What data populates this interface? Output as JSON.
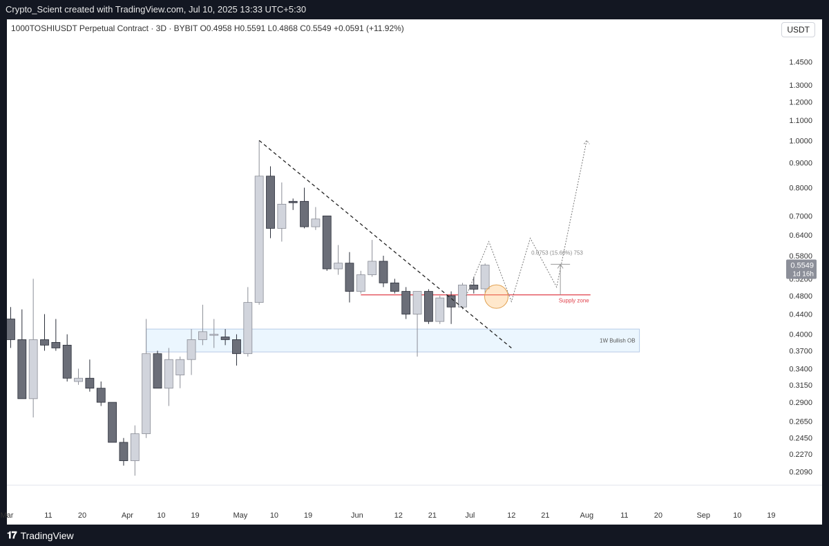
{
  "topbar": {
    "credit": "Crypto_Scient created with TradingView.com, Jul 10, 2025 13:33 UTC+5:30"
  },
  "header": {
    "symbol_line": "1000TOSHIUSDT Perpetual Contract · 3D · BYBIT  O0.4958  H0.5591  L0.4868  C0.5549  +0.0591 (+11.92%)",
    "currency": "USDT"
  },
  "footer": {
    "brand": "TradingView"
  },
  "chart_data": {
    "type": "candlestick",
    "scale": "log",
    "ylim": [
      0.196,
      1.65
    ],
    "price_ticks": [
      "1.4500",
      "1.3000",
      "1.2000",
      "1.1000",
      "1.0000",
      "0.9000",
      "0.8000",
      "0.7000",
      "0.6400",
      "0.5800",
      "0.5200",
      "0.4800",
      "0.4400",
      "0.4000",
      "0.3700",
      "0.3400",
      "0.3150",
      "0.2900",
      "0.2650",
      "0.2450",
      "0.2270",
      "0.2090"
    ],
    "time_ticks": [
      {
        "label": "Mar",
        "day": 0
      },
      {
        "label": "11",
        "day": 11
      },
      {
        "label": "20",
        "day": 20
      },
      {
        "label": "Apr",
        "day": 32
      },
      {
        "label": "10",
        "day": 41
      },
      {
        "label": "19",
        "day": 50
      },
      {
        "label": "May",
        "day": 62
      },
      {
        "label": "10",
        "day": 71
      },
      {
        "label": "19",
        "day": 80
      },
      {
        "label": "Jun",
        "day": 93
      },
      {
        "label": "12",
        "day": 104
      },
      {
        "label": "21",
        "day": 113
      },
      {
        "label": "Jul",
        "day": 123
      },
      {
        "label": "12",
        "day": 134
      },
      {
        "label": "21",
        "day": 143
      },
      {
        "label": "Aug",
        "day": 154
      },
      {
        "label": "11",
        "day": 164
      },
      {
        "label": "20",
        "day": 173
      },
      {
        "label": "Sep",
        "day": 185
      },
      {
        "label": "10",
        "day": 194
      },
      {
        "label": "19",
        "day": 203
      }
    ],
    "candles": [
      {
        "day": -2,
        "o": 0.46,
        "h": 0.49,
        "l": 0.43,
        "c": 0.44
      },
      {
        "day": 1,
        "o": 0.43,
        "h": 0.455,
        "l": 0.375,
        "c": 0.39
      },
      {
        "day": 4,
        "o": 0.39,
        "h": 0.45,
        "l": 0.295,
        "c": 0.295
      },
      {
        "day": 7,
        "o": 0.295,
        "h": 0.52,
        "l": 0.27,
        "c": 0.39
      },
      {
        "day": 10,
        "o": 0.39,
        "h": 0.44,
        "l": 0.37,
        "c": 0.38
      },
      {
        "day": 13,
        "o": 0.385,
        "h": 0.43,
        "l": 0.37,
        "c": 0.375
      },
      {
        "day": 16,
        "o": 0.38,
        "h": 0.4,
        "l": 0.32,
        "c": 0.325
      },
      {
        "day": 19,
        "o": 0.32,
        "h": 0.34,
        "l": 0.315,
        "c": 0.325
      },
      {
        "day": 22,
        "o": 0.325,
        "h": 0.355,
        "l": 0.305,
        "c": 0.31
      },
      {
        "day": 25,
        "o": 0.31,
        "h": 0.32,
        "l": 0.285,
        "c": 0.29
      },
      {
        "day": 28,
        "o": 0.29,
        "h": 0.29,
        "l": 0.24,
        "c": 0.24
      },
      {
        "day": 31,
        "o": 0.24,
        "h": 0.245,
        "l": 0.215,
        "c": 0.22
      },
      {
        "day": 34,
        "o": 0.22,
        "h": 0.26,
        "l": 0.205,
        "c": 0.25
      },
      {
        "day": 37,
        "o": 0.25,
        "h": 0.43,
        "l": 0.245,
        "c": 0.365
      },
      {
        "day": 40,
        "o": 0.365,
        "h": 0.37,
        "l": 0.31,
        "c": 0.31
      },
      {
        "day": 43,
        "o": 0.31,
        "h": 0.375,
        "l": 0.285,
        "c": 0.355
      },
      {
        "day": 46,
        "o": 0.33,
        "h": 0.36,
        "l": 0.31,
        "c": 0.355
      },
      {
        "day": 49,
        "o": 0.355,
        "h": 0.41,
        "l": 0.33,
        "c": 0.39
      },
      {
        "day": 52,
        "o": 0.39,
        "h": 0.46,
        "l": 0.38,
        "c": 0.405
      },
      {
        "day": 55,
        "o": 0.4,
        "h": 0.43,
        "l": 0.375,
        "c": 0.4
      },
      {
        "day": 58,
        "o": 0.395,
        "h": 0.41,
        "l": 0.38,
        "c": 0.39
      },
      {
        "day": 61,
        "o": 0.39,
        "h": 0.4,
        "l": 0.345,
        "c": 0.365
      },
      {
        "day": 64,
        "o": 0.365,
        "h": 0.5,
        "l": 0.36,
        "c": 0.465
      },
      {
        "day": 67,
        "o": 0.465,
        "h": 1.0,
        "l": 0.46,
        "c": 0.845
      },
      {
        "day": 70,
        "o": 0.845,
        "h": 0.885,
        "l": 0.63,
        "c": 0.66
      },
      {
        "day": 73,
        "o": 0.66,
        "h": 0.82,
        "l": 0.62,
        "c": 0.74
      },
      {
        "day": 76,
        "o": 0.75,
        "h": 0.76,
        "l": 0.72,
        "c": 0.745
      },
      {
        "day": 79,
        "o": 0.75,
        "h": 0.8,
        "l": 0.66,
        "c": 0.665
      },
      {
        "day": 82,
        "o": 0.665,
        "h": 0.73,
        "l": 0.655,
        "c": 0.69
      },
      {
        "day": 85,
        "o": 0.7,
        "h": 0.7,
        "l": 0.54,
        "c": 0.545
      },
      {
        "day": 88,
        "o": 0.545,
        "h": 0.61,
        "l": 0.53,
        "c": 0.56
      },
      {
        "day": 91,
        "o": 0.56,
        "h": 0.59,
        "l": 0.465,
        "c": 0.49
      },
      {
        "day": 94,
        "o": 0.49,
        "h": 0.54,
        "l": 0.485,
        "c": 0.53
      },
      {
        "day": 97,
        "o": 0.53,
        "h": 0.625,
        "l": 0.525,
        "c": 0.565
      },
      {
        "day": 100,
        "o": 0.565,
        "h": 0.58,
        "l": 0.5,
        "c": 0.51
      },
      {
        "day": 103,
        "o": 0.51,
        "h": 0.52,
        "l": 0.485,
        "c": 0.49
      },
      {
        "day": 106,
        "o": 0.49,
        "h": 0.5,
        "l": 0.43,
        "c": 0.44
      },
      {
        "day": 109,
        "o": 0.44,
        "h": 0.49,
        "l": 0.36,
        "c": 0.49
      },
      {
        "day": 112,
        "o": 0.49,
        "h": 0.495,
        "l": 0.42,
        "c": 0.425
      },
      {
        "day": 115,
        "o": 0.425,
        "h": 0.48,
        "l": 0.42,
        "c": 0.475
      },
      {
        "day": 118,
        "o": 0.48,
        "h": 0.49,
        "l": 0.42,
        "c": 0.455
      },
      {
        "day": 121,
        "o": 0.455,
        "h": 0.51,
        "l": 0.45,
        "c": 0.505
      },
      {
        "day": 124,
        "o": 0.505,
        "h": 0.525,
        "l": 0.485,
        "c": 0.495
      },
      {
        "day": 127,
        "o": 0.4958,
        "h": 0.5591,
        "l": 0.4868,
        "c": 0.5549
      }
    ],
    "last_price": "0.5549",
    "countdown": "1d 16h",
    "trendline": {
      "from": {
        "day": 67,
        "price": 1.0
      },
      "to": {
        "day": 134,
        "price": 0.375
      }
    },
    "supply_zone": {
      "price": 0.482,
      "from_day": 94,
      "to_day": 155,
      "label": "Supply zone"
    },
    "bullish_ob": {
      "top": 0.41,
      "bottom": 0.368,
      "from_day": 37,
      "to_day": 168,
      "label": "1W Bullish OB"
    },
    "measure": {
      "day": 147,
      "from_price": 0.482,
      "to_price": 0.557,
      "label": "0.0753 (15.60%) 753"
    },
    "projection": [
      {
        "day": 122,
        "price": 0.48
      },
      {
        "day": 128,
        "price": 0.62
      },
      {
        "day": 134,
        "price": 0.467
      },
      {
        "day": 139,
        "price": 0.63
      },
      {
        "day": 146,
        "price": 0.5
      },
      {
        "day": 154,
        "price": 1.0
      }
    ],
    "circle": {
      "day": 130,
      "price": 0.478
    }
  }
}
